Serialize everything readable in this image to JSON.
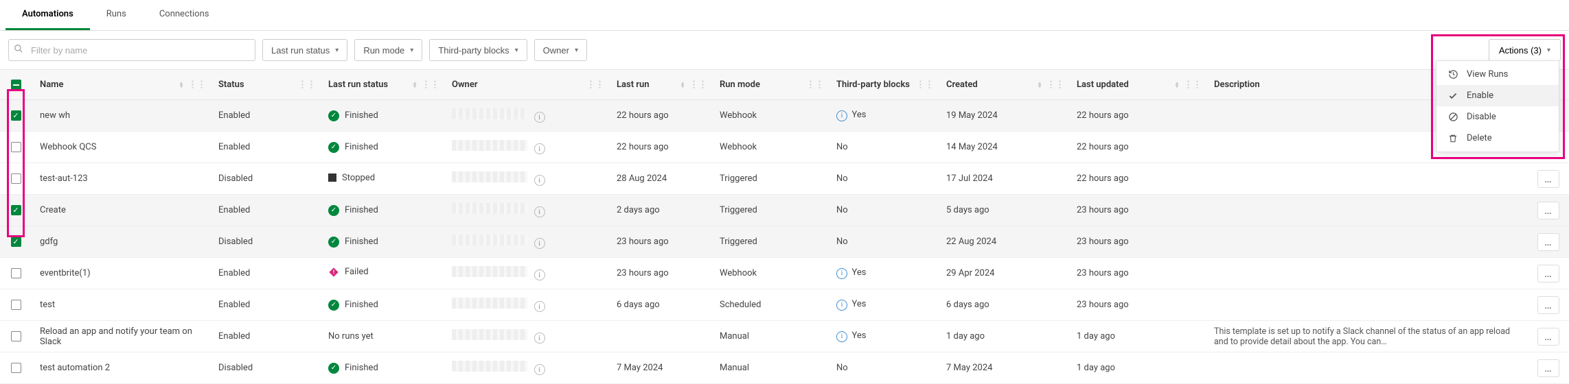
{
  "tabs": [
    {
      "label": "Automations",
      "active": true
    },
    {
      "label": "Runs",
      "active": false
    },
    {
      "label": "Connections",
      "active": false
    }
  ],
  "filters": {
    "search_placeholder": "Filter by name",
    "buttons": [
      "Last run status",
      "Run mode",
      "Third-party blocks",
      "Owner"
    ]
  },
  "actions_button_label": "Actions (3)",
  "columns": [
    "Name",
    "Status",
    "Last run status",
    "Owner",
    "Last run",
    "Run mode",
    "Third-party blocks",
    "Created",
    "Last updated",
    "Description"
  ],
  "actions_menu": [
    {
      "icon": "history",
      "label": "View Runs"
    },
    {
      "icon": "check",
      "label": "Enable",
      "hover": true
    },
    {
      "icon": "ban",
      "label": "Disable"
    },
    {
      "icon": "trash",
      "label": "Delete"
    }
  ],
  "rows": [
    {
      "sel": true,
      "name": "new wh",
      "status": "Enabled",
      "run": {
        "t": "finished",
        "l": "Finished"
      },
      "last": "22 hours ago",
      "mode": "Webhook",
      "tp": "Yes",
      "tp_info": true,
      "created": "19 May 2024",
      "updated": "22 hours ago",
      "desc": "",
      "more": false
    },
    {
      "sel": false,
      "name": "Webhook QCS",
      "status": "Enabled",
      "run": {
        "t": "finished",
        "l": "Finished"
      },
      "last": "22 hours ago",
      "mode": "Webhook",
      "tp": "No",
      "tp_info": false,
      "created": "14 May 2024",
      "updated": "22 hours ago",
      "desc": "",
      "more": false
    },
    {
      "sel": false,
      "name": "test-aut-123",
      "status": "Disabled",
      "run": {
        "t": "stopped",
        "l": "Stopped"
      },
      "last": "28 Aug 2024",
      "mode": "Triggered",
      "tp": "No",
      "tp_info": false,
      "created": "17 Jul 2024",
      "updated": "22 hours ago",
      "desc": "",
      "more": true
    },
    {
      "sel": true,
      "name": "Create",
      "status": "Enabled",
      "run": {
        "t": "finished",
        "l": "Finished"
      },
      "last": "2 days ago",
      "mode": "Triggered",
      "tp": "No",
      "tp_info": false,
      "created": "5 days ago",
      "updated": "23 hours ago",
      "desc": "",
      "more": true
    },
    {
      "sel": true,
      "name": "gdfg",
      "status": "Disabled",
      "run": {
        "t": "finished",
        "l": "Finished"
      },
      "last": "23 hours ago",
      "mode": "Triggered",
      "tp": "No",
      "tp_info": false,
      "created": "22 Aug 2024",
      "updated": "23 hours ago",
      "desc": "",
      "more": true
    },
    {
      "sel": false,
      "name": "eventbrite(1)",
      "status": "Enabled",
      "run": {
        "t": "failed",
        "l": "Failed"
      },
      "last": "23 hours ago",
      "mode": "Webhook",
      "tp": "Yes",
      "tp_info": true,
      "created": "29 Apr 2024",
      "updated": "23 hours ago",
      "desc": "",
      "more": true
    },
    {
      "sel": false,
      "name": "test",
      "status": "Enabled",
      "run": {
        "t": "finished",
        "l": "Finished"
      },
      "last": "6 days ago",
      "mode": "Scheduled",
      "tp": "Yes",
      "tp_info": true,
      "created": "6 days ago",
      "updated": "23 hours ago",
      "desc": "",
      "more": true
    },
    {
      "sel": false,
      "name": "Reload an app and notify your team on Slack",
      "status": "Enabled",
      "run": {
        "t": "none",
        "l": "No runs yet"
      },
      "last": "",
      "mode": "Manual",
      "tp": "Yes",
      "tp_info": true,
      "created": "1 day ago",
      "updated": "1 day ago",
      "desc": "This template is set up to notify a Slack channel of the status of an app reload and to provide detail about the app. You can…",
      "more": true
    },
    {
      "sel": false,
      "name": "test automation 2",
      "status": "Disabled",
      "run": {
        "t": "finished",
        "l": "Finished"
      },
      "last": "7 May 2024",
      "mode": "Manual",
      "tp": "No",
      "tp_info": false,
      "created": "7 May 2024",
      "updated": "1 day ago",
      "desc": "",
      "more": true
    }
  ],
  "colors": {
    "accent": "#00873d",
    "highlight": "#e6007e",
    "fail": "#d9277a",
    "info": "#3f8ed0"
  }
}
